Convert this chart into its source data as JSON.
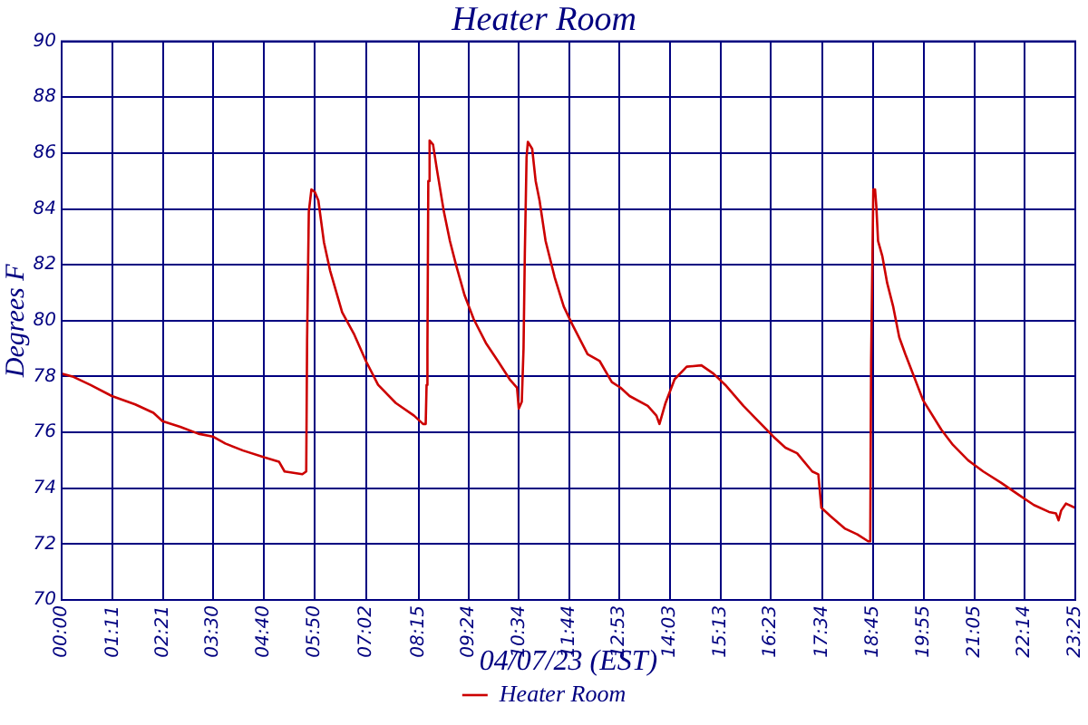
{
  "chart_data": {
    "type": "line",
    "title": "Heater Room",
    "xlabel": "04/07/23 (EST)",
    "ylabel": "Degrees F",
    "x": [
      0,
      0.25,
      0.66,
      1.16,
      1.7,
      2.12,
      2.33,
      2.74,
      3.16,
      3.49,
      3.78,
      4.19,
      4.69,
      5.02,
      5.15,
      5.56,
      5.65,
      5.67,
      5.71,
      5.77,
      5.85,
      5.93,
      6.06,
      6.2,
      6.48,
      6.76,
      7.03,
      7.31,
      7.72,
      8.14,
      8.35,
      8.41,
      8.43,
      8.45,
      8.47,
      8.5,
      8.58,
      8.67,
      8.83,
      8.97,
      9.11,
      9.31,
      9.52,
      9.8,
      10.08,
      10.35,
      10.52,
      10.56,
      10.63,
      10.67,
      10.7,
      10.74,
      10.77,
      10.87,
      10.95,
      11.04,
      11.18,
      11.39,
      11.6,
      11.8,
      12.15,
      12.43,
      12.71,
      12.91,
      13.12,
      13.54,
      13.74,
      13.81,
      13.95,
      14.16,
      14.44,
      14.78,
      15.06,
      15.33,
      15.75,
      16.03,
      16.44,
      16.72,
      16.99,
      17.34,
      17.48,
      17.55,
      17.76,
      18.1,
      18.38,
      18.63,
      18.68,
      18.7,
      18.75,
      18.79,
      18.82,
      18.86,
      18.96,
      19.07,
      19.21,
      19.35,
      19.49,
      19.69,
      19.9,
      20.32,
      20.59,
      20.94,
      21.29,
      21.7,
      22.12,
      22.46,
      22.81,
      22.97,
      23.03,
      23.09,
      23.2,
      23.41
    ],
    "series": [
      {
        "name": "Heater Room",
        "color": "#cc0000",
        "values": [
          78.1,
          78.0,
          77.7,
          77.3,
          77.0,
          76.7,
          76.4,
          76.2,
          75.95,
          75.85,
          75.6,
          75.35,
          75.1,
          74.95,
          74.6,
          74.5,
          74.6,
          79.3,
          83.9,
          84.7,
          84.6,
          84.3,
          82.8,
          81.8,
          80.3,
          79.5,
          78.55,
          77.7,
          77.05,
          76.6,
          76.3,
          76.3,
          77.7,
          79.0,
          85.0,
          86.45,
          86.3,
          85.4,
          83.9,
          82.85,
          82.0,
          80.9,
          80.05,
          79.2,
          78.55,
          77.9,
          77.6,
          76.85,
          77.1,
          79.0,
          82.4,
          85.85,
          86.4,
          86.15,
          85.0,
          84.3,
          82.85,
          81.55,
          80.5,
          79.85,
          78.8,
          78.55,
          77.8,
          77.6,
          77.3,
          76.95,
          76.6,
          76.3,
          77.05,
          77.9,
          78.35,
          78.4,
          78.1,
          77.7,
          76.95,
          76.5,
          75.85,
          75.45,
          75.25,
          74.6,
          74.5,
          73.3,
          73.0,
          72.55,
          72.35,
          72.1,
          72.1,
          78.55,
          84.7,
          84.7,
          84.1,
          82.85,
          82.3,
          81.35,
          80.5,
          79.4,
          78.8,
          78.0,
          77.15,
          76.1,
          75.55,
          75.0,
          74.6,
          74.2,
          73.75,
          73.4,
          73.15,
          73.1,
          72.85,
          73.2,
          73.45,
          73.3
        ]
      }
    ],
    "xlim": [
      0,
      23.4167
    ],
    "xticks": [
      {
        "value": 0,
        "label": "00:00"
      },
      {
        "value": 1.1833,
        "label": "01:11"
      },
      {
        "value": 2.35,
        "label": "02:21"
      },
      {
        "value": 3.5,
        "label": "03:30"
      },
      {
        "value": 4.6667,
        "label": "04:40"
      },
      {
        "value": 5.8333,
        "label": "05:50"
      },
      {
        "value": 7.0333,
        "label": "07:02"
      },
      {
        "value": 8.25,
        "label": "08:15"
      },
      {
        "value": 9.4,
        "label": "09:24"
      },
      {
        "value": 10.5667,
        "label": "10:34"
      },
      {
        "value": 11.7333,
        "label": "11:44"
      },
      {
        "value": 12.8833,
        "label": "12:53"
      },
      {
        "value": 14.05,
        "label": "14:03"
      },
      {
        "value": 15.2167,
        "label": "15:13"
      },
      {
        "value": 16.3833,
        "label": "16:23"
      },
      {
        "value": 17.5667,
        "label": "17:34"
      },
      {
        "value": 18.75,
        "label": "18:45"
      },
      {
        "value": 19.9167,
        "label": "19:55"
      },
      {
        "value": 21.0833,
        "label": "21:05"
      },
      {
        "value": 22.2333,
        "label": "22:14"
      },
      {
        "value": 23.4167,
        "label": "23:25"
      }
    ],
    "ylim": [
      70,
      90
    ],
    "yticks": [
      70,
      72,
      74,
      76,
      78,
      80,
      82,
      84,
      86,
      88,
      90
    ],
    "grid": true,
    "legend": "bottom"
  }
}
